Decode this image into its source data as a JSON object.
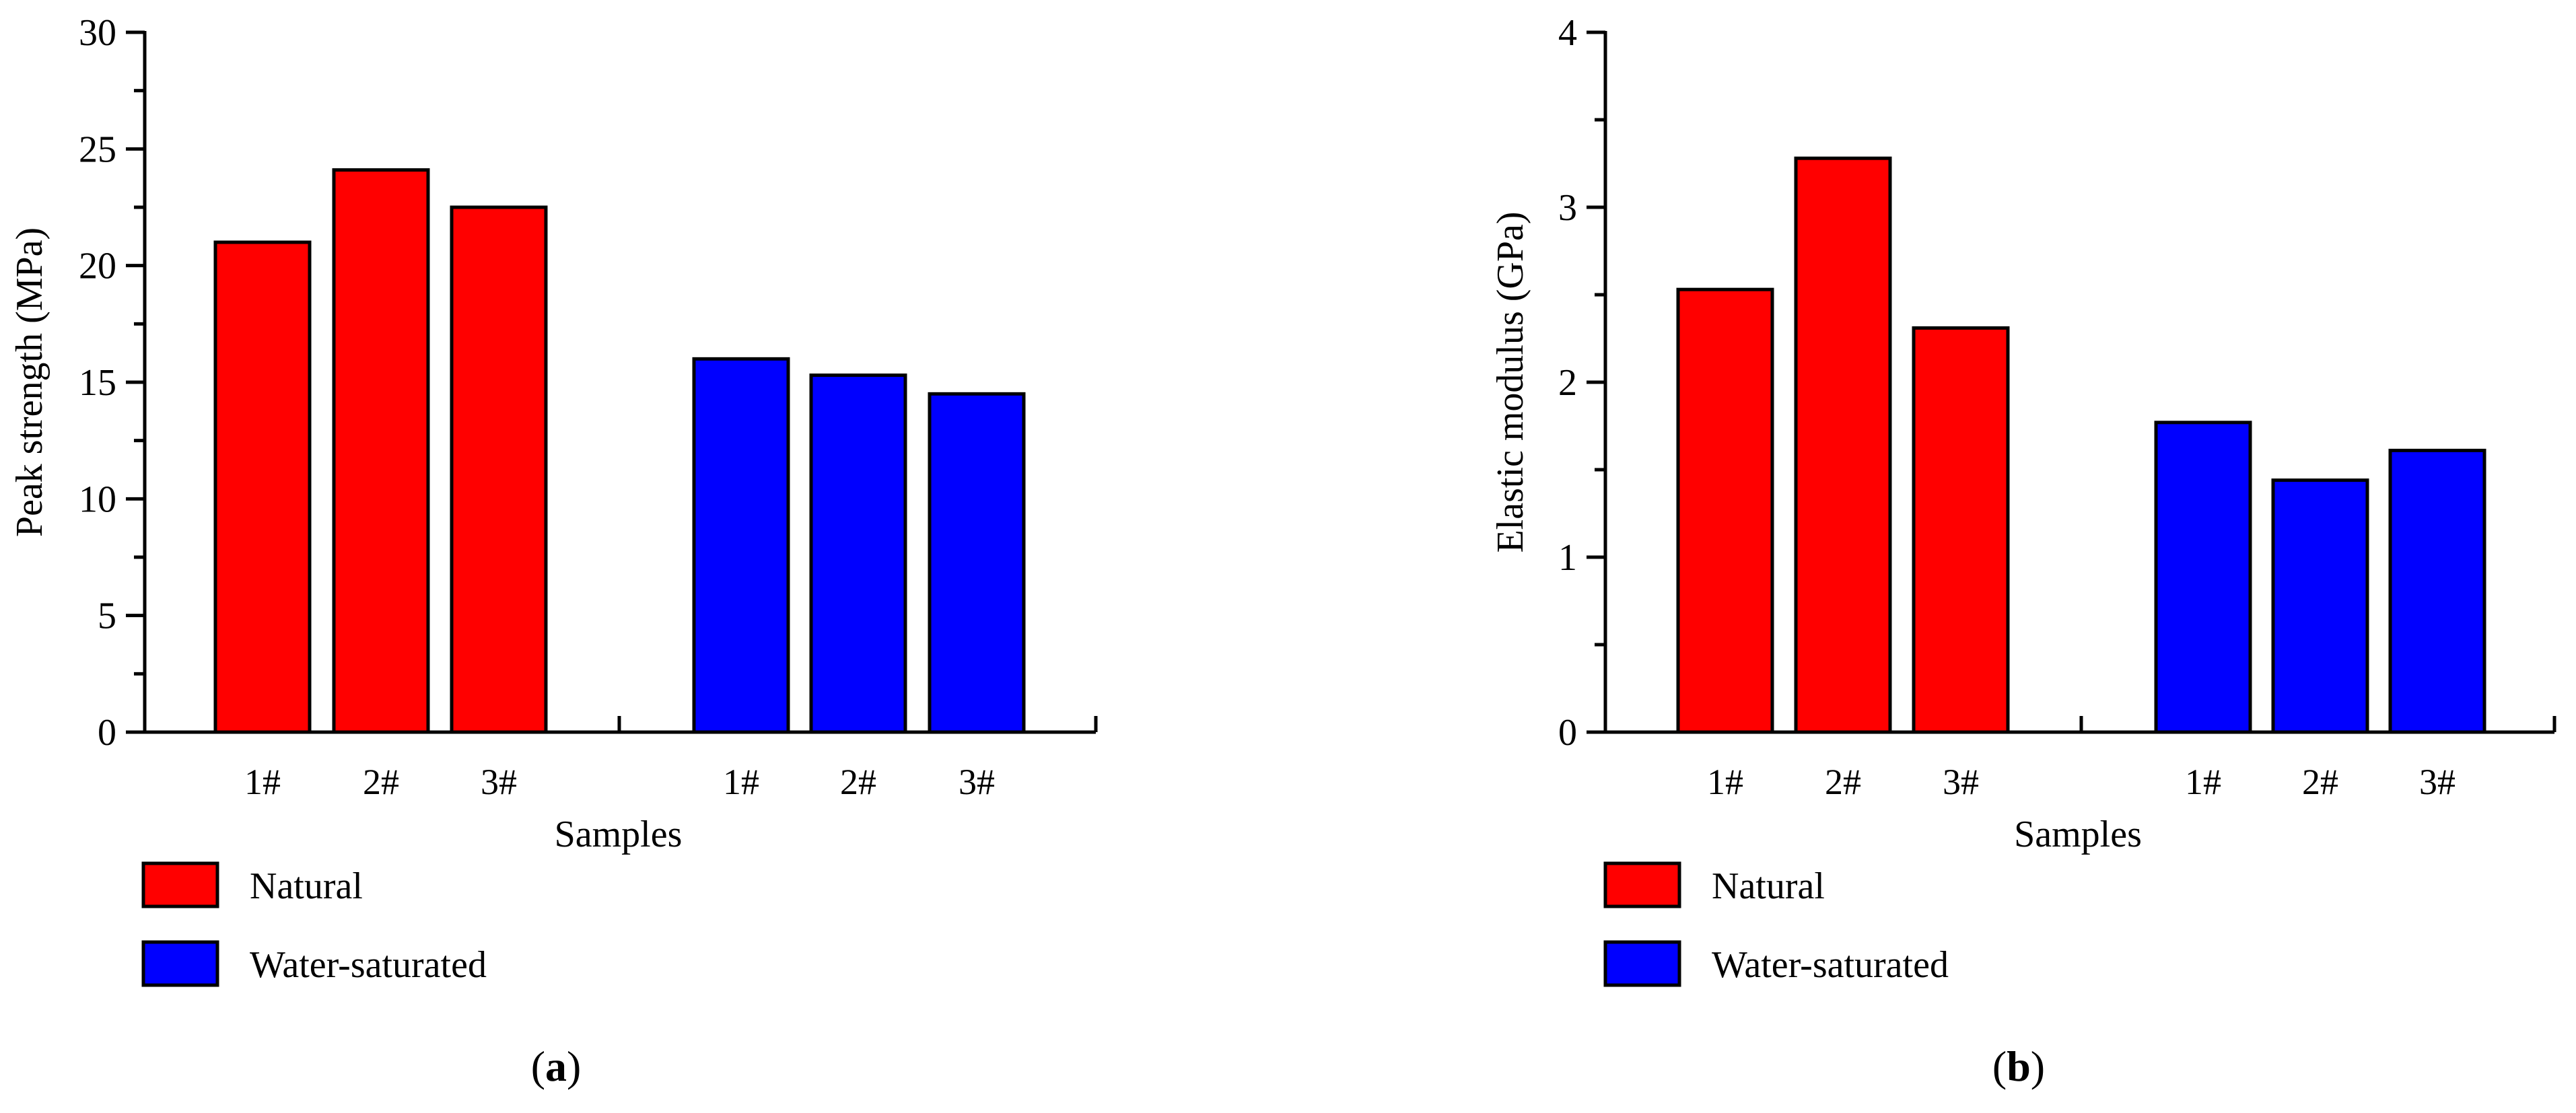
{
  "chart_data": [
    {
      "type": "bar",
      "panel_label": "a",
      "ylabel": "Peak strength (MPa)",
      "xlabel": "Samples",
      "ylim": [
        0,
        30
      ],
      "yticks": [
        0,
        5,
        10,
        15,
        20,
        25,
        30
      ],
      "groups": [
        {
          "series": "Natural",
          "categories": [
            "1#",
            "2#",
            "3#"
          ],
          "values": [
            21.0,
            24.1,
            22.5
          ]
        },
        {
          "series": "Water-saturated",
          "categories": [
            "1#",
            "2#",
            "3#"
          ],
          "values": [
            16.0,
            15.3,
            14.5
          ]
        }
      ],
      "legend": [
        {
          "name": "Natural",
          "color": "#ff0000"
        },
        {
          "name": "Water-saturated",
          "color": "#0000ff"
        }
      ],
      "legend_position": "bottom-left"
    },
    {
      "type": "bar",
      "panel_label": "b",
      "ylabel": "Elastic modulus (GPa)",
      "xlabel": "Samples",
      "ylim": [
        0,
        4
      ],
      "yticks": [
        0,
        1,
        2,
        3,
        4
      ],
      "groups": [
        {
          "series": "Natural",
          "categories": [
            "1#",
            "2#",
            "3#"
          ],
          "values": [
            2.53,
            3.28,
            2.31
          ]
        },
        {
          "series": "Water-saturated",
          "categories": [
            "1#",
            "2#",
            "3#"
          ],
          "values": [
            1.77,
            1.44,
            1.61
          ]
        }
      ],
      "legend": [
        {
          "name": "Natural",
          "color": "#ff0000"
        },
        {
          "name": "Water-saturated",
          "color": "#0000ff"
        }
      ],
      "legend_position": "bottom-left"
    }
  ]
}
